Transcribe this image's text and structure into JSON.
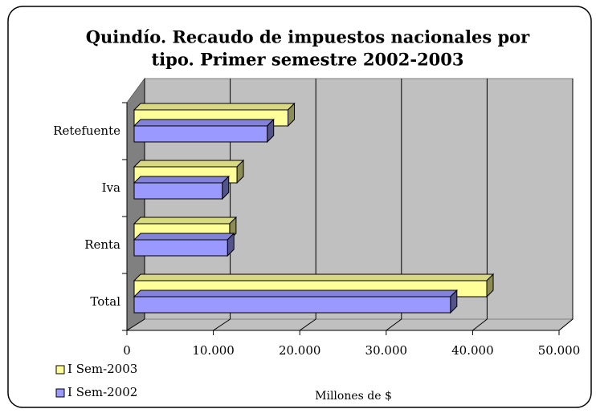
{
  "chart_data": {
    "type": "bar3d-horizontal",
    "title": [
      "Quindío. Recaudo de impuestos nacionales por",
      "tipo. Primer semestre 2002-2003"
    ],
    "categories": [
      "Retefuente",
      "Iva",
      "Renta",
      "Total"
    ],
    "series": [
      {
        "name": "I Sem-2003",
        "color": "#ffff99",
        "values": [
          17800,
          11900,
          11050,
          40800
        ]
      },
      {
        "name": "I Sem-2002",
        "color": "#9999ff",
        "values": [
          15400,
          10200,
          10800,
          36600
        ]
      }
    ],
    "xlim": [
      0,
      50000
    ],
    "xticks": [
      0,
      {
        "value": 10000,
        "label": "10.000"
      },
      {
        "value": 20000,
        "label": "20.000"
      },
      {
        "value": 30000,
        "label": "30.000"
      },
      {
        "value": 40000,
        "label": "40.000"
      },
      {
        "value": 50000,
        "label": "50.000"
      }
    ],
    "xlabel": "Millones de $",
    "grid": true,
    "legend": "bottom-left"
  }
}
